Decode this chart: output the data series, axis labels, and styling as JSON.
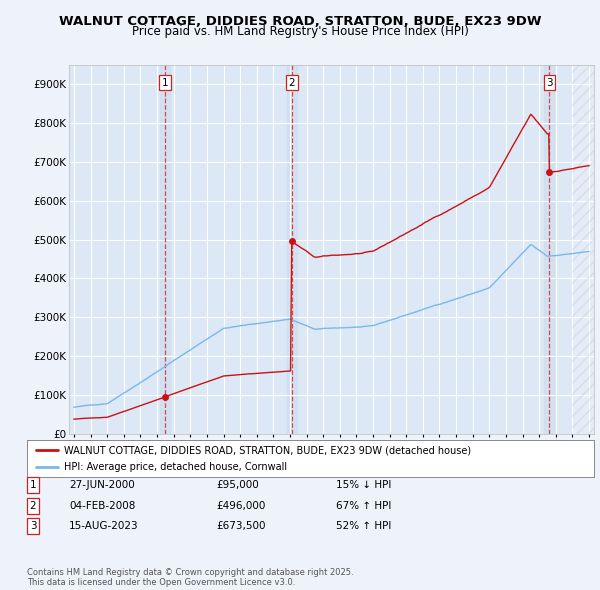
{
  "title": "WALNUT COTTAGE, DIDDIES ROAD, STRATTON, BUDE, EX23 9DW",
  "subtitle": "Price paid vs. HM Land Registry's House Price Index (HPI)",
  "background_color": "#eef2fa",
  "plot_bg_color": "#dce8f5",
  "grid_color": "#ffffff",
  "y_ticks": [
    0,
    100000,
    200000,
    300000,
    400000,
    500000,
    600000,
    700000,
    800000,
    900000
  ],
  "y_tick_labels": [
    "£0",
    "£100K",
    "£200K",
    "£300K",
    "£400K",
    "£500K",
    "£600K",
    "£700K",
    "£800K",
    "£900K"
  ],
  "hpi_line_color": "#7ab8e8",
  "property_line_color": "#cc1111",
  "sale_point_color": "#cc1111",
  "vline_color_sale": "#dd4444",
  "legend_label_property": "WALNUT COTTAGE, DIDDIES ROAD, STRATTON, BUDE, EX23 9DW (detached house)",
  "legend_label_hpi": "HPI: Average price, detached house, Cornwall",
  "sale_decimals": [
    2000.5,
    2008.1,
    2023.62
  ],
  "sale_prices": [
    95000,
    496000,
    673500
  ],
  "sale_labels": [
    "1",
    "2",
    "3"
  ],
  "table_rows": [
    [
      "1",
      "27-JUN-2000",
      "£95,000",
      "15% ↓ HPI"
    ],
    [
      "2",
      "04-FEB-2008",
      "£496,000",
      "67% ↑ HPI"
    ],
    [
      "3",
      "15-AUG-2023",
      "£673,500",
      "52% ↑ HPI"
    ]
  ],
  "footnote": "Contains HM Land Registry data © Crown copyright and database right 2025.\nThis data is licensed under the Open Government Licence v3.0.",
  "ylim": [
    0,
    950000
  ],
  "xlim": [
    1994.7,
    2026.3
  ]
}
